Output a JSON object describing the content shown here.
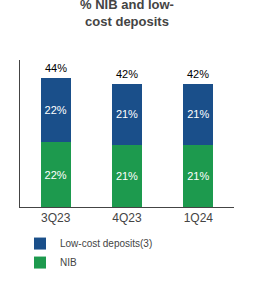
{
  "chart_data": {
    "type": "bar",
    "title": "% NIB and low-\ncost deposits",
    "categories": [
      "3Q23",
      "4Q23",
      "1Q24"
    ],
    "stacked": true,
    "data_labels": true,
    "series": [
      {
        "name": "NIB",
        "color": "#1d9a4e",
        "values": [
          22,
          21,
          21
        ],
        "value_labels": [
          "22%",
          "21%",
          "21%"
        ]
      },
      {
        "name": "Low-cost deposits(3)",
        "color": "#1a4f8a",
        "values": [
          22,
          21,
          21
        ],
        "value_labels": [
          "22%",
          "21%",
          "21%"
        ]
      }
    ],
    "totals": [
      44,
      42,
      42
    ],
    "total_labels": [
      "44%",
      "42%",
      "42%"
    ],
    "ylim": [
      0,
      50
    ],
    "yticks": [],
    "tick_labels": "x",
    "grid": false,
    "legend": "bottom left"
  }
}
